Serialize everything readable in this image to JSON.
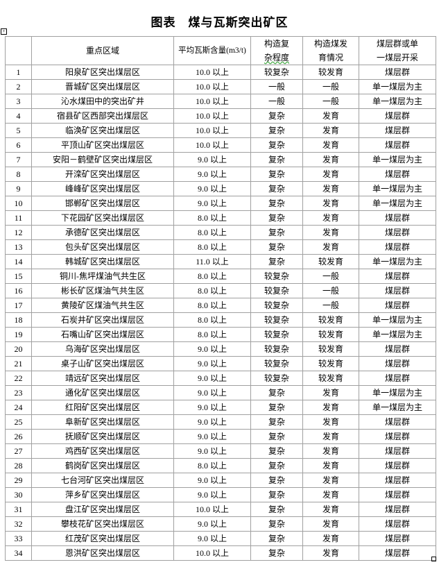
{
  "title": "图表　煤与瓦斯突出矿区",
  "table": {
    "headers": [
      "",
      "重点区域",
      "平均瓦斯含量(m3/t)",
      "构造复杂程度",
      "构造煤发育情况",
      "煤层群或单一煤层开采"
    ],
    "header_lines": {
      "complexity": [
        "构造复",
        "杂程度"
      ],
      "development": [
        "构造煤发",
        "育情况"
      ],
      "seam": [
        "煤层群或单",
        "一煤层开采"
      ]
    },
    "rows": [
      [
        "1",
        "阳泉矿区突出煤层区",
        "10.0 以上",
        "较复杂",
        "较发育",
        "煤层群"
      ],
      [
        "2",
        "晋城矿区突出煤层区",
        "10.0 以上",
        "一般",
        "一般",
        "单一煤层为主"
      ],
      [
        "3",
        "沁水煤田中的突出矿井",
        "10.0 以上",
        "一般",
        "一般",
        "单一煤层为主"
      ],
      [
        "4",
        "宿县矿区西部突出煤层区",
        "10.0 以上",
        "复杂",
        "发育",
        "煤层群"
      ],
      [
        "5",
        "临涣矿区突出煤层区",
        "10.0 以上",
        "复杂",
        "发育",
        "煤层群"
      ],
      [
        "6",
        "平顶山矿区突出煤层区",
        "10.0 以上",
        "复杂",
        "发育",
        "煤层群"
      ],
      [
        "7",
        "安阳－鹤壁矿区突出煤层区",
        "9.0 以上",
        "复杂",
        "发育",
        "单一煤层为主"
      ],
      [
        "8",
        "开滦矿区突出煤层区",
        "9.0 以上",
        "复杂",
        "发育",
        "煤层群"
      ],
      [
        "9",
        "峰峰矿区突出煤层区",
        "9.0 以上",
        "复杂",
        "发育",
        "单一煤层为主"
      ],
      [
        "10",
        "邯郸矿区突出煤层区",
        "9.0 以上",
        "复杂",
        "发育",
        "单一煤层为主"
      ],
      [
        "11",
        "下花园矿区突出煤层区",
        "8.0 以上",
        "复杂",
        "发育",
        "煤层群"
      ],
      [
        "12",
        "承德矿区突出煤层区",
        "8.0 以上",
        "复杂",
        "发育",
        "煤层群"
      ],
      [
        "13",
        "包头矿区突出煤层区",
        "8.0 以上",
        "复杂",
        "发育",
        "煤层群"
      ],
      [
        "14",
        "韩城矿区突出煤层区",
        "11.0 以上",
        "复杂",
        "较发育",
        "单一煤层为主"
      ],
      [
        "15",
        "铜川-焦坪煤油气共生区",
        "8.0 以上",
        "较复杂",
        "一般",
        "煤层群"
      ],
      [
        "16",
        "彬长矿区煤油气共生区",
        "8.0 以上",
        "较复杂",
        "一般",
        "煤层群"
      ],
      [
        "17",
        "黄陵矿区煤油气共生区",
        "8.0 以上",
        "较复杂",
        "一般",
        "煤层群"
      ],
      [
        "18",
        "石炭井矿区突出煤层区",
        "8.0 以上",
        "较复杂",
        "较发育",
        "单一煤层为主"
      ],
      [
        "19",
        "石嘴山矿区突出煤层区",
        "8.0 以上",
        "较复杂",
        "较发育",
        "单一煤层为主"
      ],
      [
        "20",
        "乌海矿区突出煤层区",
        "9.0 以上",
        "较复杂",
        "较发育",
        "煤层群"
      ],
      [
        "21",
        "桌子山矿区突出煤层区",
        "9.0 以上",
        "较复杂",
        "较发育",
        "煤层群"
      ],
      [
        "22",
        "靖远矿区突出煤层区",
        "9.0 以上",
        "较复杂",
        "较发育",
        "煤层群"
      ],
      [
        "23",
        "通化矿区突出煤层区",
        "9.0 以上",
        "复杂",
        "发育",
        "单一煤层为主"
      ],
      [
        "24",
        "红阳矿区突出煤层区",
        "9.0 以上",
        "复杂",
        "发育",
        "单一煤层为主"
      ],
      [
        "25",
        "阜新矿区突出煤层区",
        "9.0 以上",
        "复杂",
        "发育",
        "煤层群"
      ],
      [
        "26",
        "抚顺矿区突出煤层区",
        "9.0 以上",
        "复杂",
        "发育",
        "煤层群"
      ],
      [
        "27",
        "鸡西矿区突出煤层区",
        "9.0 以上",
        "复杂",
        "发育",
        "煤层群"
      ],
      [
        "28",
        "鹤岗矿区突出煤层区",
        "8.0 以上",
        "复杂",
        "发育",
        "煤层群"
      ],
      [
        "29",
        "七台河矿区突出煤层区",
        "9.0 以上",
        "复杂",
        "发育",
        "煤层群"
      ],
      [
        "30",
        "萍乡矿区突出煤层区",
        "9.0 以上",
        "复杂",
        "发育",
        "煤层群"
      ],
      [
        "31",
        "盘江矿区突出煤层区",
        "10.0 以上",
        "复杂",
        "发育",
        "煤层群"
      ],
      [
        "32",
        "攀枝花矿区突出煤层区",
        "9.0 以上",
        "复杂",
        "发育",
        "煤层群"
      ],
      [
        "33",
        "红茂矿区突出煤层区",
        "9.0 以上",
        "复杂",
        "发育",
        "煤层群"
      ],
      [
        "34",
        "恩洪矿区突出煤层区",
        "10.0 以上",
        "复杂",
        "发育",
        "煤层群"
      ]
    ]
  }
}
